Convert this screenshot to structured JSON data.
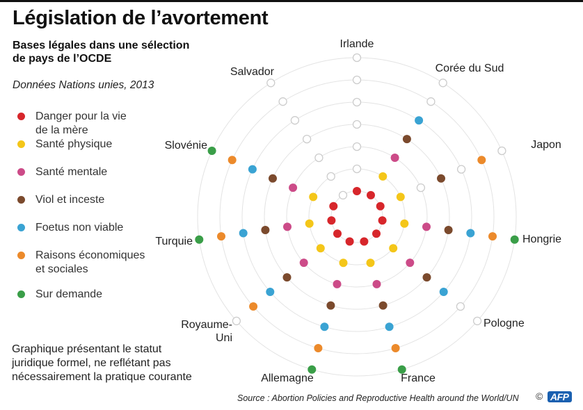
{
  "title": "Législation de l’avortement",
  "subtitle": "Bases légales dans une sélection de pays de l’OCDE",
  "data_note": "Données Nations unies, 2013",
  "legend": [
    {
      "label": "Danger pour la vie\nde la mère",
      "color": "#d7262b"
    },
    {
      "label": "Santé physique",
      "color": "#f4c619"
    },
    {
      "label": "Santé mentale",
      "color": "#cc4b88"
    },
    {
      "label": "Viol et inceste",
      "color": "#7b4a2d"
    },
    {
      "label": "Foetus non viable",
      "color": "#3aa3d3"
    },
    {
      "label": "Raisons économiques\net sociales",
      "color": "#ec8a2b"
    },
    {
      "label": "Sur demande",
      "color": "#3a9e48"
    }
  ],
  "footnote": "Graphique présentant le statut\njuridique formel, ne reflétant pas\nnécessairement la pratique courante",
  "source": "Source : Abortion Policies and Reproductive Health around the World/UN",
  "copyright": "©",
  "logo_text": "AFP",
  "chart_data": {
    "type": "radial-dot-matrix",
    "rings": [
      "Danger pour la vie de la mère",
      "Santé physique",
      "Santé mentale",
      "Viol et inceste",
      "Foetus non viable",
      "Raisons économiques et sociales",
      "Sur demande"
    ],
    "ring_colors": [
      "#d7262b",
      "#f4c619",
      "#cc4b88",
      "#7b4a2d",
      "#3aa3d3",
      "#ec8a2b",
      "#3a9e48"
    ],
    "countries": [
      {
        "name": "Irlande",
        "legal": [
          true,
          false,
          false,
          false,
          false,
          false,
          false
        ]
      },
      {
        "name": "Corée du Sud",
        "legal": [
          true,
          true,
          true,
          true,
          true,
          false,
          false
        ]
      },
      {
        "name": "Japon",
        "legal": [
          true,
          true,
          false,
          true,
          false,
          true,
          false
        ]
      },
      {
        "name": "Hongrie",
        "legal": [
          true,
          true,
          true,
          true,
          true,
          true,
          true
        ]
      },
      {
        "name": "Pologne",
        "legal": [
          true,
          true,
          true,
          true,
          true,
          false,
          false
        ]
      },
      {
        "name": "France",
        "legal": [
          true,
          true,
          true,
          true,
          true,
          true,
          true
        ]
      },
      {
        "name": "Allemagne",
        "legal": [
          true,
          true,
          true,
          true,
          true,
          true,
          true
        ]
      },
      {
        "name": "Royaume-\nUni",
        "legal": [
          true,
          true,
          true,
          true,
          true,
          true,
          false
        ]
      },
      {
        "name": "Turquie",
        "legal": [
          true,
          true,
          true,
          true,
          true,
          true,
          true
        ]
      },
      {
        "name": "Slovénie",
        "legal": [
          true,
          true,
          true,
          true,
          true,
          true,
          true
        ]
      },
      {
        "name": "Salvador",
        "legal": [
          false,
          false,
          false,
          false,
          false,
          false,
          false
        ]
      }
    ]
  }
}
